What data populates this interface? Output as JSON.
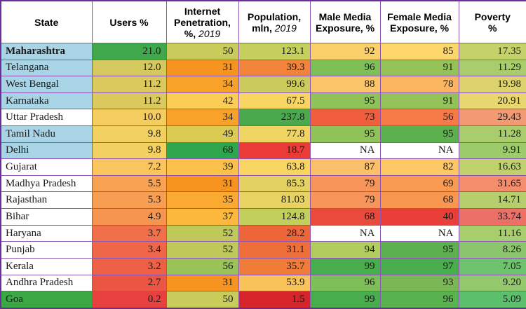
{
  "columns": [
    {
      "label": "State",
      "italic": ""
    },
    {
      "label": "Users %",
      "italic": ""
    },
    {
      "label": "Internet|Penetration,|%, ",
      "italic": "2019"
    },
    {
      "label": "Population,|mln, ",
      "italic": "2019"
    },
    {
      "label": "Male Media|Exposure, %",
      "italic": ""
    },
    {
      "label": "Female Media|Exposure, %",
      "italic": ""
    },
    {
      "label": "Poverty|%",
      "italic": ""
    }
  ],
  "rows": [
    {
      "state": "Maharashtra",
      "bold": true,
      "state_bg": "#a8d4e6",
      "values": [
        "21.0",
        "50",
        "123.1",
        "92",
        "85",
        "17.35"
      ],
      "colors": [
        "#3fa84a",
        "#c9cc5a",
        "#c4cf5c",
        "#fbd06a",
        "#fdd66c",
        "#c4d26a"
      ]
    },
    {
      "state": "Telangana",
      "bold": false,
      "state_bg": "#a8d4e6",
      "values": [
        "12.0",
        "31",
        "39.3",
        "96",
        "91",
        "11.29"
      ],
      "colors": [
        "#d4c85e",
        "#f7931f",
        "#f1833a",
        "#7fbf58",
        "#94c158",
        "#a9cd6c"
      ]
    },
    {
      "state": "West Bengal",
      "bold": false,
      "state_bg": "#a8d4e6",
      "values": [
        "11.2",
        "34",
        "99.6",
        "88",
        "78",
        "19.98"
      ],
      "colors": [
        "#dbc95e",
        "#f9a22a",
        "#cbca5c",
        "#fbc66a",
        "#fbb560",
        "#ddd36e"
      ]
    },
    {
      "state": "Karnataka",
      "bold": false,
      "state_bg": "#a8d4e6",
      "values": [
        "11.2",
        "42",
        "67.5",
        "95",
        "91",
        "20.91"
      ],
      "colors": [
        "#dbc95e",
        "#fbcd55",
        "#f8d560",
        "#8fc35a",
        "#94c158",
        "#e8d66e"
      ]
    },
    {
      "state": "Uttar Pradesh",
      "bold": false,
      "state_bg": "#ffffff",
      "values": [
        "10.0",
        "34",
        "237.8",
        "73",
        "56",
        "29.43"
      ],
      "colors": [
        "#f4cd5e",
        "#f9a22a",
        "#4aa94c",
        "#f15e3e",
        "#f57a48",
        "#f39a72"
      ]
    },
    {
      "state": "Tamil Nadu",
      "bold": false,
      "state_bg": "#a8d4e6",
      "values": [
        "9.8",
        "49",
        "77.8",
        "95",
        "95",
        "11.28"
      ],
      "colors": [
        "#f3d160",
        "#dccb52",
        "#f0d462",
        "#8fc35a",
        "#5cb04e",
        "#a9cd6c"
      ]
    },
    {
      "state": "Delhi",
      "bold": false,
      "state_bg": "#a8d4e6",
      "values": [
        "9.8",
        "68",
        "18.7",
        "NA",
        "NA",
        "9.91"
      ],
      "colors": [
        "#f3d160",
        "#2ea64e",
        "#ea3b37",
        "#ffffff",
        "#ffffff",
        "#9ccb6c"
      ]
    },
    {
      "state": "Gujarat",
      "bold": false,
      "state_bg": "#ffffff",
      "values": [
        "7.2",
        "39",
        "63.8",
        "87",
        "82",
        "16.63"
      ],
      "colors": [
        "#fbc55e",
        "#fcc14a",
        "#f8d462",
        "#fbc06a",
        "#fcc866",
        "#c0d06c"
      ]
    },
    {
      "state": "Madhya Pradesh",
      "bold": false,
      "state_bg": "#ffffff",
      "values": [
        "5.5",
        "31",
        "85.3",
        "79",
        "69",
        "31.65"
      ],
      "colors": [
        "#f8a253",
        "#f7931f",
        "#e3d262",
        "#f8955a",
        "#f99a52",
        "#f48d6c"
      ]
    },
    {
      "state": "Rajasthan",
      "bold": false,
      "state_bg": "#ffffff",
      "values": [
        "5.3",
        "35",
        "81.03",
        "79",
        "68",
        "14.71"
      ],
      "colors": [
        "#f79e52",
        "#faaa30",
        "#e8d262",
        "#f8955a",
        "#f99650",
        "#b6cf6c"
      ]
    },
    {
      "state": "Bihar",
      "bold": false,
      "state_bg": "#ffffff",
      "values": [
        "4.9",
        "37",
        "124.8",
        "68",
        "40",
        "33.74"
      ],
      "colors": [
        "#f69550",
        "#fbb83c",
        "#c2cf5c",
        "#ea4a3c",
        "#ea3e38",
        "#ed7068"
      ]
    },
    {
      "state": "Haryana",
      "bold": false,
      "state_bg": "#ffffff",
      "values": [
        "3.7",
        "52",
        "28.2",
        "NA",
        "NA",
        "11.16"
      ],
      "colors": [
        "#f1704a",
        "#bfc95a",
        "#ee6539",
        "#ffffff",
        "#ffffff",
        "#a8cd6c"
      ]
    },
    {
      "state": "Punjab",
      "bold": false,
      "state_bg": "#ffffff",
      "values": [
        "3.4",
        "52",
        "31.1",
        "94",
        "95",
        "8.26"
      ],
      "colors": [
        "#ef6648",
        "#bfc95a",
        "#ef6f3a",
        "#b1cd5e",
        "#5cb04e",
        "#8cc66c"
      ]
    },
    {
      "state": "Kerala",
      "bold": false,
      "state_bg": "#ffffff",
      "values": [
        "3.2",
        "56",
        "35.7",
        "99",
        "97",
        "7.05"
      ],
      "colors": [
        "#ee6046",
        "#99c258",
        "#f07c3a",
        "#48ad4c",
        "#48ad4c",
        "#6ec26e"
      ]
    },
    {
      "state": "Andhra Pradesh",
      "bold": false,
      "state_bg": "#ffffff",
      "values": [
        "2.7",
        "31",
        "53.9",
        "96",
        "93",
        "9.20"
      ],
      "colors": [
        "#ec5543",
        "#f7931f",
        "#fac35a",
        "#7fbf58",
        "#7ab856",
        "#94c86c"
      ]
    },
    {
      "state": "Goa",
      "bold": false,
      "state_bg": "#39a845",
      "values": [
        "0.2",
        "50",
        "1.5",
        "99",
        "96",
        "5.09"
      ],
      "colors": [
        "#e8403e",
        "#c9cc5a",
        "#d5252a",
        "#48ad4c",
        "#58b24e",
        "#5cbf6c"
      ]
    }
  ]
}
